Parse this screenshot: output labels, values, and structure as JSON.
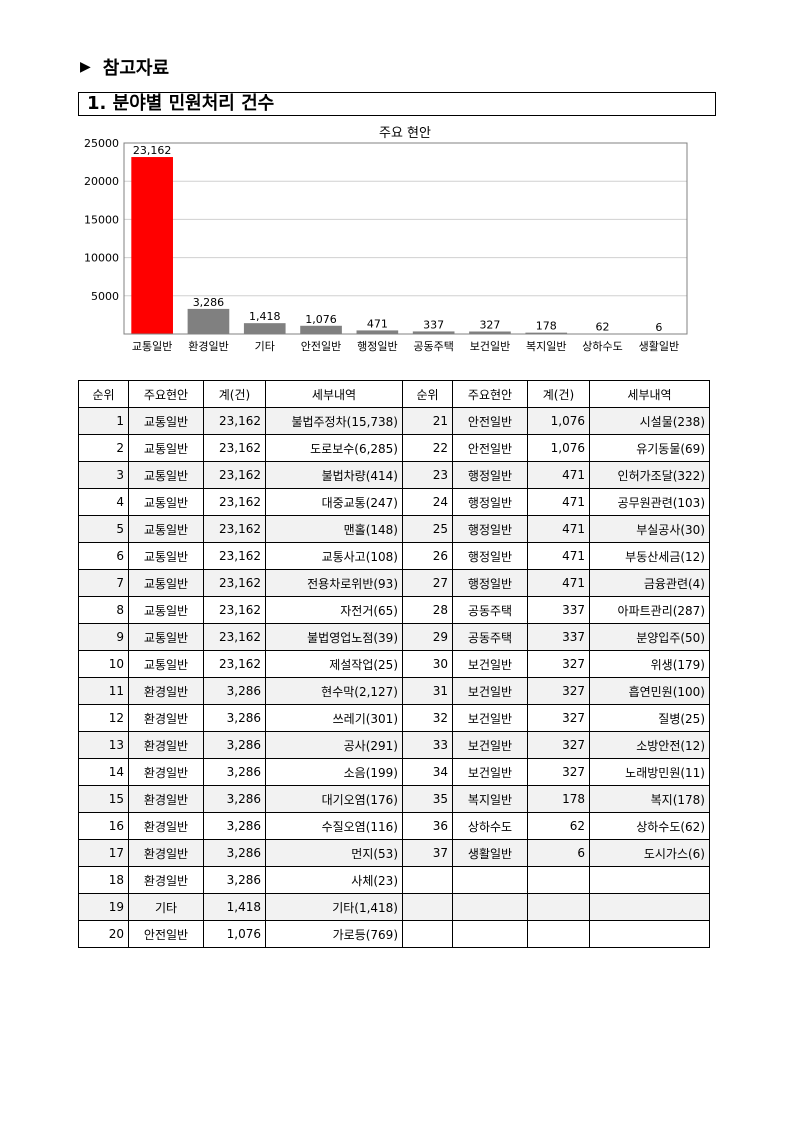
{
  "page": {
    "ref_heading": "참고자료",
    "section_title": "1. 분야별 민원처리 건수"
  },
  "chart_data": {
    "type": "bar",
    "title": "주요 현안",
    "categories": [
      "교통일반",
      "환경일반",
      "기타",
      "안전일반",
      "행정일반",
      "공동주택",
      "보건일반",
      "복지일반",
      "상하수도",
      "생활일반"
    ],
    "values": [
      23162,
      3286,
      1418,
      1076,
      471,
      337,
      327,
      178,
      62,
      6
    ],
    "value_labels": [
      "23,162",
      "3,286",
      "1,418",
      "1,076",
      "471",
      "337",
      "327",
      "178",
      "62",
      "6"
    ],
    "yticks": [
      5000,
      10000,
      15000,
      20000,
      25000
    ],
    "ylim": [
      0,
      25000
    ],
    "highlight_color": "#ff0000",
    "bar_color": "#808080",
    "grid": true
  },
  "table": {
    "headers": [
      "순위",
      "주요현안",
      "계(건)",
      "세부내역",
      "순위",
      "주요현안",
      "계(건)",
      "세부내역"
    ],
    "rows": [
      {
        "l": [
          "1",
          "교통일반",
          "23,162",
          "불법주정차(15,738)"
        ],
        "lb": true,
        "r": [
          "21",
          "안전일반",
          "1,076",
          "시설물(238)"
        ],
        "rb": false,
        "shade": true
      },
      {
        "l": [
          "2",
          "교통일반",
          "23,162",
          "도로보수(6,285)"
        ],
        "lb": false,
        "r": [
          "22",
          "안전일반",
          "1,076",
          "유기동물(69)"
        ],
        "rb": false,
        "shade": false
      },
      {
        "l": [
          "3",
          "교통일반",
          "23,162",
          "불법차량(414)"
        ],
        "lb": false,
        "r": [
          "23",
          "행정일반",
          "471",
          "인허가조달(322)"
        ],
        "rb": true,
        "shade": true
      },
      {
        "l": [
          "4",
          "교통일반",
          "23,162",
          "대중교통(247)"
        ],
        "lb": false,
        "r": [
          "24",
          "행정일반",
          "471",
          "공무원관련(103)"
        ],
        "rb": false,
        "shade": false
      },
      {
        "l": [
          "5",
          "교통일반",
          "23,162",
          "맨홀(148)"
        ],
        "lb": false,
        "r": [
          "25",
          "행정일반",
          "471",
          "부실공사(30)"
        ],
        "rb": false,
        "shade": true
      },
      {
        "l": [
          "6",
          "교통일반",
          "23,162",
          "교통사고(108)"
        ],
        "lb": false,
        "r": [
          "26",
          "행정일반",
          "471",
          "부동산세금(12)"
        ],
        "rb": false,
        "shade": false
      },
      {
        "l": [
          "7",
          "교통일반",
          "23,162",
          "전용차로위반(93)"
        ],
        "lb": false,
        "r": [
          "27",
          "행정일반",
          "471",
          "금융관련(4)"
        ],
        "rb": false,
        "shade": true
      },
      {
        "l": [
          "8",
          "교통일반",
          "23,162",
          "자전거(65)"
        ],
        "lb": false,
        "r": [
          "28",
          "공동주택",
          "337",
          "아파트관리(287)"
        ],
        "rb": true,
        "shade": false
      },
      {
        "l": [
          "9",
          "교통일반",
          "23,162",
          "불법영업노점(39)"
        ],
        "lb": false,
        "r": [
          "29",
          "공동주택",
          "337",
          "분양입주(50)"
        ],
        "rb": false,
        "shade": true
      },
      {
        "l": [
          "10",
          "교통일반",
          "23,162",
          "제설작업(25)"
        ],
        "lb": false,
        "r": [
          "30",
          "보건일반",
          "327",
          "위생(179)"
        ],
        "rb": true,
        "shade": false
      },
      {
        "l": [
          "11",
          "환경일반",
          "3,286",
          "현수막(2,127)"
        ],
        "lb": true,
        "r": [
          "31",
          "보건일반",
          "327",
          "흡연민원(100)"
        ],
        "rb": false,
        "shade": true
      },
      {
        "l": [
          "12",
          "환경일반",
          "3,286",
          "쓰레기(301)"
        ],
        "lb": false,
        "r": [
          "32",
          "보건일반",
          "327",
          "질병(25)"
        ],
        "rb": false,
        "shade": false
      },
      {
        "l": [
          "13",
          "환경일반",
          "3,286",
          "공사(291)"
        ],
        "lb": false,
        "r": [
          "33",
          "보건일반",
          "327",
          "소방안전(12)"
        ],
        "rb": false,
        "shade": true
      },
      {
        "l": [
          "14",
          "환경일반",
          "3,286",
          "소음(199)"
        ],
        "lb": false,
        "r": [
          "34",
          "보건일반",
          "327",
          "노래방민원(11)"
        ],
        "rb": false,
        "shade": false
      },
      {
        "l": [
          "15",
          "환경일반",
          "3,286",
          "대기오염(176)"
        ],
        "lb": false,
        "r": [
          "35",
          "복지일반",
          "178",
          "복지(178)"
        ],
        "rb": true,
        "shade": true
      },
      {
        "l": [
          "16",
          "환경일반",
          "3,286",
          "수질오염(116)"
        ],
        "lb": false,
        "r": [
          "36",
          "상하수도",
          "62",
          "상하수도(62)"
        ],
        "rb": true,
        "shade": false
      },
      {
        "l": [
          "17",
          "환경일반",
          "3,286",
          "먼지(53)"
        ],
        "lb": false,
        "r": [
          "37",
          "생활일반",
          "6",
          "도시가스(6)"
        ],
        "rb": true,
        "shade": true
      },
      {
        "l": [
          "18",
          "환경일반",
          "3,286",
          "사체(23)"
        ],
        "lb": false,
        "r": [
          "",
          "",
          "",
          ""
        ],
        "rb": false,
        "shade": false
      },
      {
        "l": [
          "19",
          "기타",
          "1,418",
          "기타(1,418)"
        ],
        "lb": true,
        "r": [
          "",
          "",
          "",
          ""
        ],
        "rb": false,
        "shade": true
      },
      {
        "l": [
          "20",
          "안전일반",
          "1,076",
          "가로등(769)"
        ],
        "lb": true,
        "r": [
          "",
          "",
          "",
          ""
        ],
        "rb": false,
        "shade": false
      }
    ]
  }
}
